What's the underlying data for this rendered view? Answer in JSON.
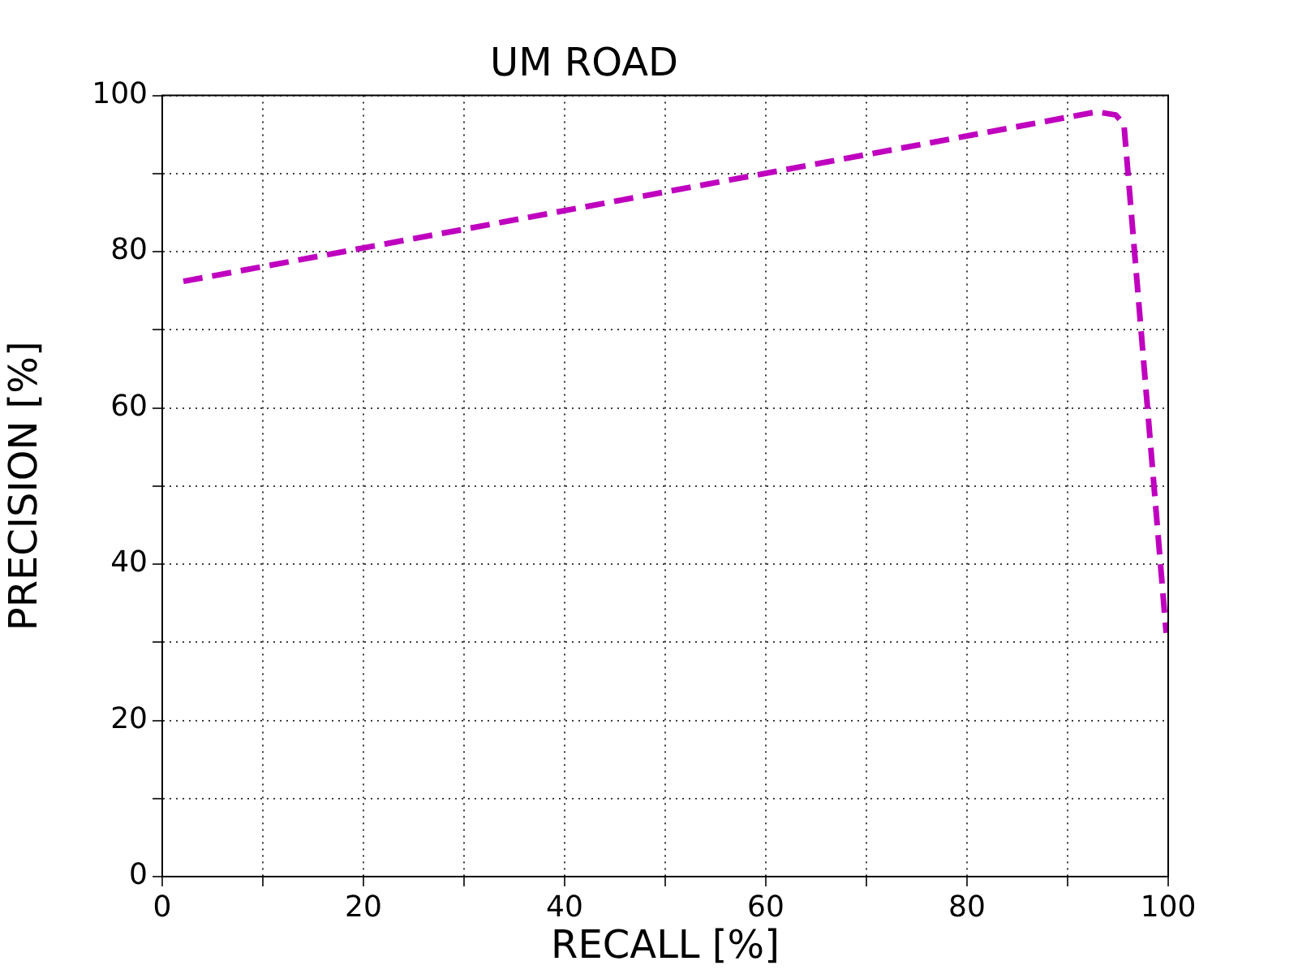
{
  "chart_data": {
    "type": "line",
    "title": "UM ROAD",
    "xlabel": "RECALL [%]",
    "ylabel": "PRECISION [%]",
    "x": [
      2.1,
      92.9,
      94.8,
      95.6,
      99.8
    ],
    "series": [
      {
        "color": "#bf00bf",
        "values": [
          76.2,
          97.9,
          97.5,
          96.3,
          31.2
        ]
      }
    ],
    "xlim": [
      0,
      100
    ],
    "ylim": [
      0,
      100
    ],
    "xticks": [
      0,
      {
        "value": 10,
        "label": null
      },
      20,
      {
        "value": 30,
        "label": null
      },
      40,
      {
        "value": 50,
        "label": null
      },
      60,
      {
        "value": 70,
        "label": null
      },
      80,
      {
        "value": 90,
        "label": null
      },
      100
    ],
    "yticks": [
      0,
      {
        "value": 10,
        "label": null
      },
      20,
      {
        "value": 30,
        "label": null
      },
      40,
      {
        "value": 50,
        "label": null
      },
      60,
      {
        "value": 70,
        "label": null
      },
      80,
      {
        "value": 90,
        "label": null
      },
      100
    ],
    "grid": true,
    "legend": false,
    "marker": "none",
    "line_style": "dashed"
  }
}
